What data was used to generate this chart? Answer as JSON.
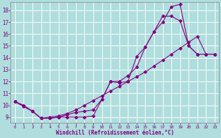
{
  "bg_color": "#b0dede",
  "grid_color": "#c8eaea",
  "line_color": "#800080",
  "marker_color": "#800080",
  "xlabel": "Windchill (Refroidissement éolien,°C)",
  "xlabel_color": "#800080",
  "tick_color": "#800080",
  "xlim": [
    -0.5,
    23.5
  ],
  "ylim": [
    8.5,
    18.7
  ],
  "yticks": [
    9,
    10,
    11,
    12,
    13,
    14,
    15,
    16,
    17,
    18
  ],
  "xticks": [
    0,
    1,
    2,
    3,
    4,
    5,
    6,
    7,
    8,
    9,
    10,
    11,
    12,
    13,
    14,
    15,
    16,
    17,
    18,
    19,
    20,
    21,
    22,
    23
  ],
  "line1_x": [
    0,
    1,
    2,
    3,
    4,
    5,
    6,
    7,
    8,
    9,
    10,
    11,
    12,
    13,
    14,
    15,
    16,
    17,
    18,
    19,
    20,
    21,
    22,
    23
  ],
  "line1_y": [
    10.3,
    9.9,
    9.5,
    8.9,
    8.9,
    9.0,
    9.0,
    9.0,
    9.0,
    9.1,
    10.5,
    12.0,
    11.9,
    12.0,
    14.1,
    14.9,
    16.2,
    17.0,
    18.3,
    18.5,
    15.0,
    14.3,
    14.3,
    14.3
  ],
  "line2_x": [
    0,
    1,
    2,
    3,
    4,
    5,
    6,
    7,
    8,
    9,
    10,
    11,
    12,
    13,
    14,
    15,
    16,
    17,
    18,
    19,
    20,
    21,
    22,
    23
  ],
  "line2_y": [
    10.3,
    10.0,
    9.5,
    8.9,
    8.9,
    9.0,
    9.2,
    9.4,
    9.5,
    9.6,
    10.5,
    12.0,
    12.0,
    12.5,
    13.2,
    14.9,
    16.2,
    17.5,
    17.5,
    17.1,
    15.0,
    14.3,
    14.3,
    14.3
  ],
  "line3_x": [
    0,
    1,
    2,
    3,
    4,
    5,
    6,
    7,
    8,
    9,
    10,
    11,
    12,
    13,
    14,
    15,
    16,
    17,
    18,
    19,
    20,
    21,
    22,
    23
  ],
  "line3_y": [
    10.3,
    9.9,
    9.5,
    8.9,
    9.0,
    9.1,
    9.3,
    9.6,
    10.0,
    10.4,
    10.8,
    11.2,
    11.6,
    12.0,
    12.4,
    12.8,
    13.3,
    13.8,
    14.3,
    14.8,
    15.3,
    15.8,
    14.3,
    14.3
  ]
}
